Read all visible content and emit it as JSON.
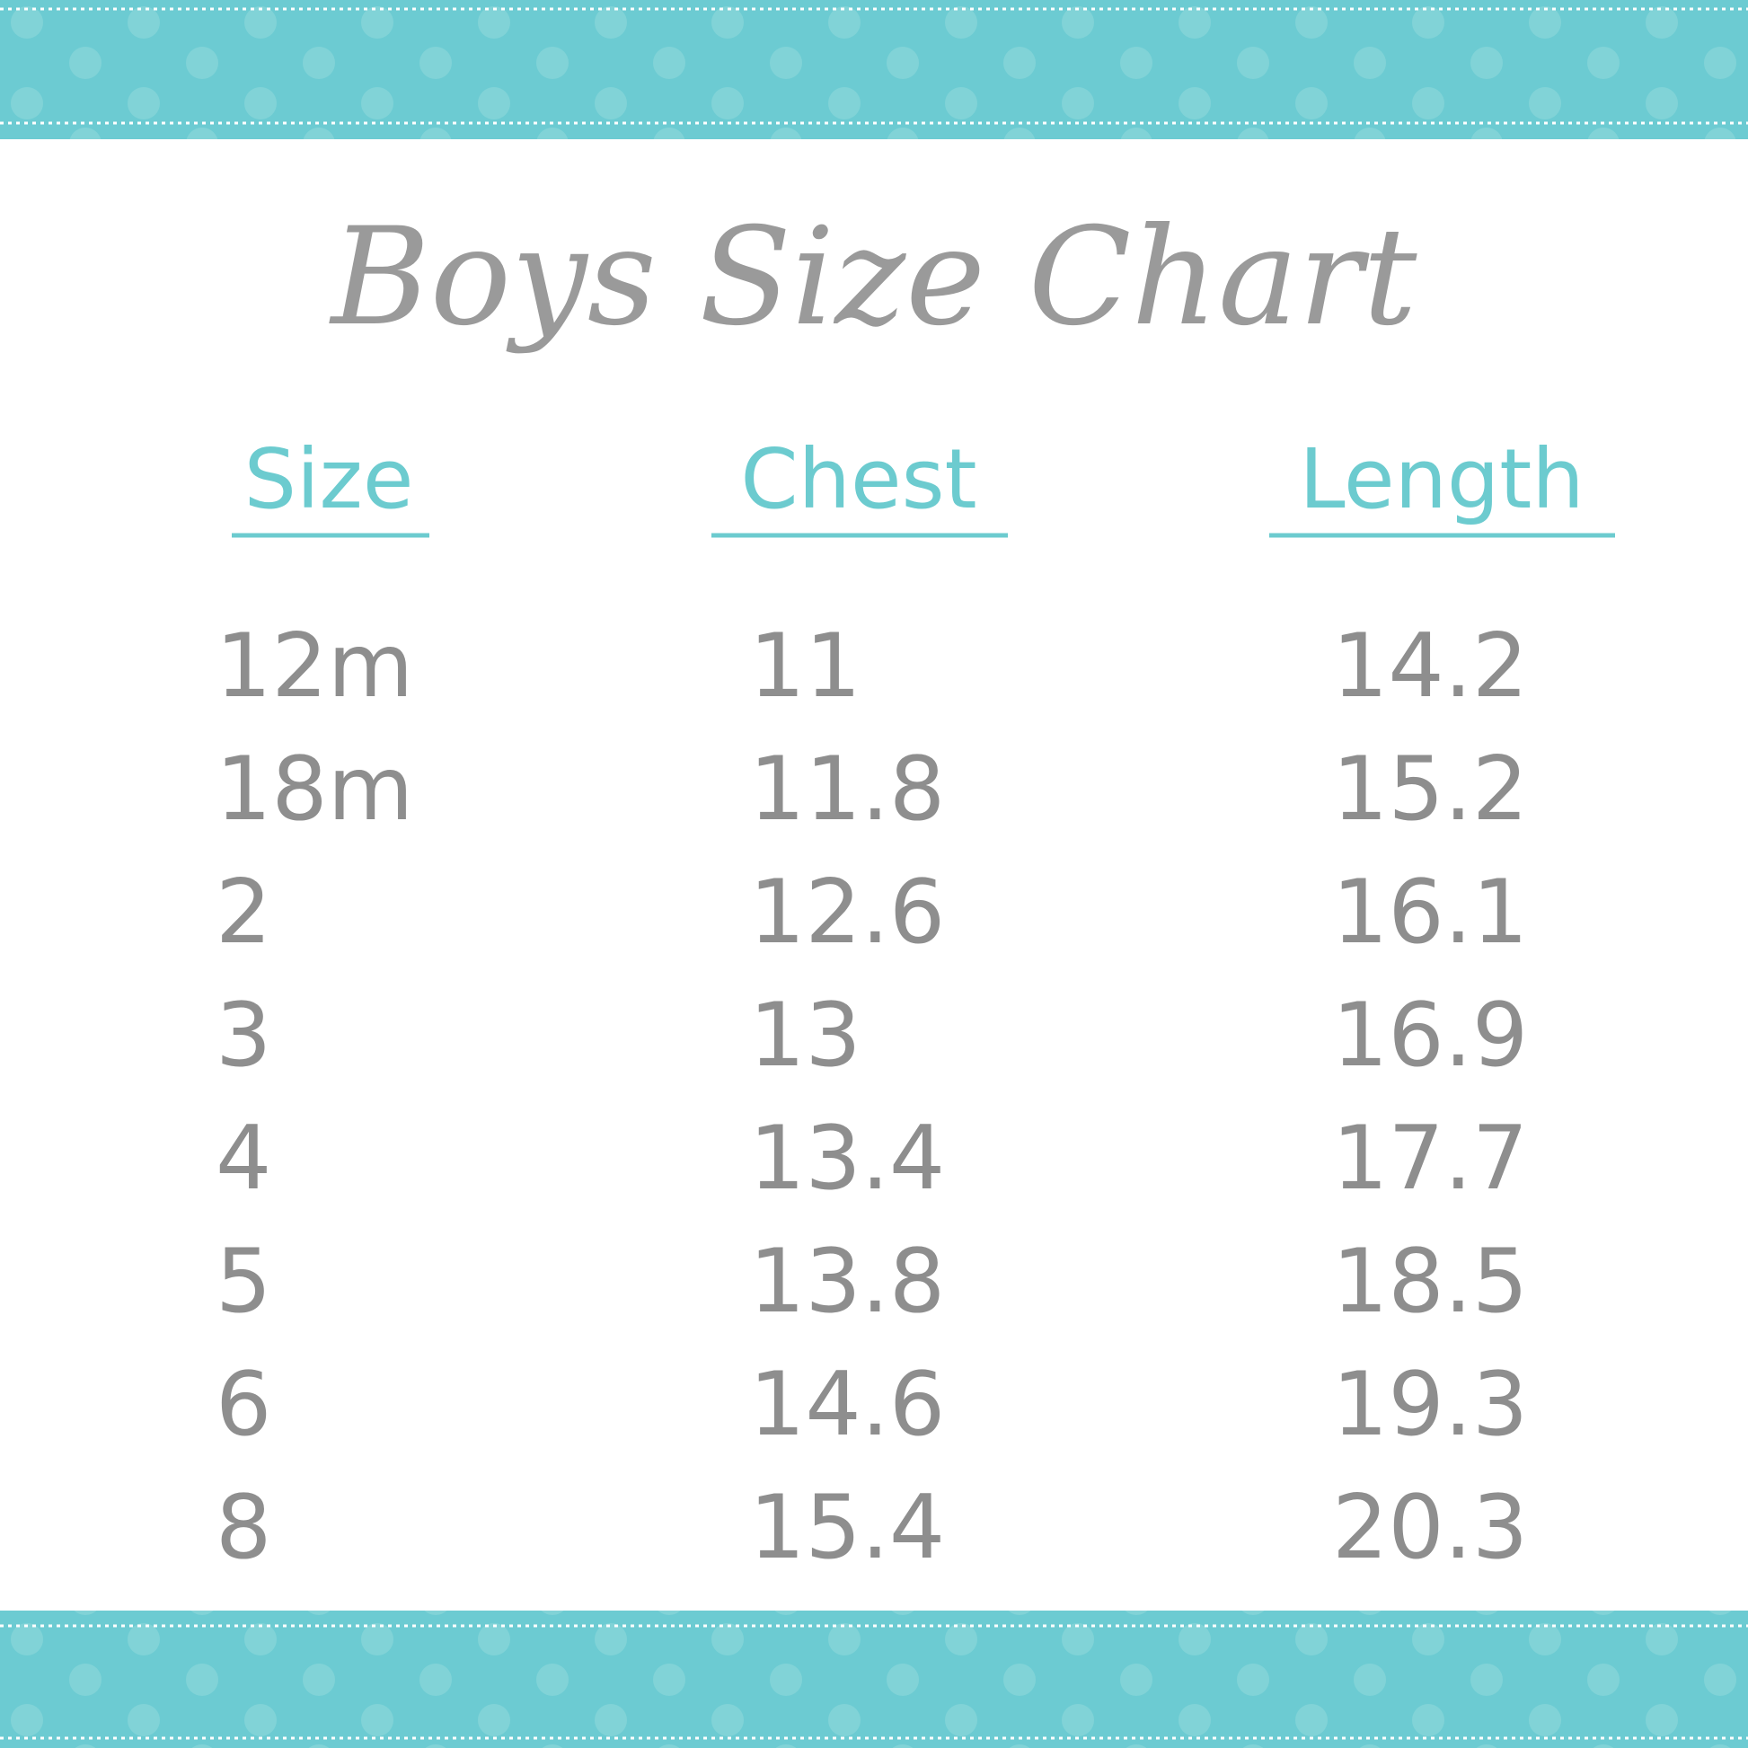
{
  "title": "Boys Size Chart",
  "table": {
    "headers": [
      "Size",
      "Chest",
      "Length"
    ],
    "rows": [
      [
        "12m",
        11,
        14.2
      ],
      [
        "18m",
        11.8,
        15.2
      ],
      [
        "2",
        12.6,
        16.1
      ],
      [
        "3",
        13,
        16.9
      ],
      [
        "4",
        13.4,
        17.7
      ],
      [
        "5",
        13.8,
        18.5
      ],
      [
        "6",
        14.6,
        19.3
      ],
      [
        "8",
        15.4,
        20.3
      ]
    ]
  }
}
